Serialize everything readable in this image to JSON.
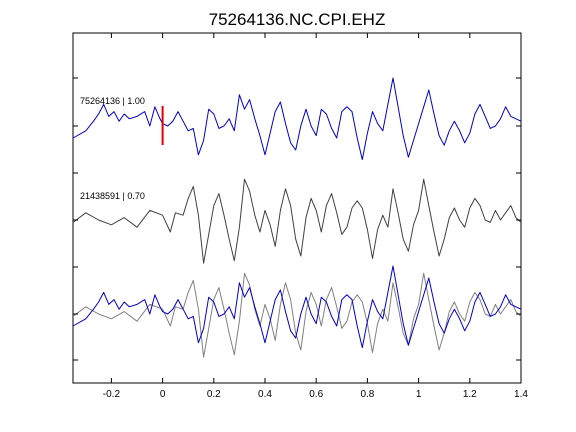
{
  "chart_data": {
    "type": "line",
    "title": "75264136.NC.CPI.EHZ",
    "xlabel": "",
    "ylabel": "",
    "xlim": [
      -0.35,
      1.4
    ],
    "xticks": [
      -0.2,
      0,
      0.2,
      0.4,
      0.6,
      0.8,
      1,
      1.2,
      1.4
    ],
    "xtick_labels": [
      "-0.2",
      "0",
      "0.2",
      "0.4",
      "0.6",
      "0.8",
      "1",
      "1.2",
      "1.4"
    ],
    "grid": false,
    "pick_marker": {
      "x": 0,
      "color": "#e00000"
    },
    "traces": [
      {
        "label": "75264136 | 1.00",
        "color": "#0000cc",
        "x": [
          -0.35,
          -0.3,
          -0.27,
          -0.25,
          -0.23,
          -0.21,
          -0.19,
          -0.17,
          -0.15,
          -0.13,
          -0.1,
          -0.07,
          -0.05,
          -0.03,
          -0.01,
          0.0,
          0.02,
          0.04,
          0.06,
          0.08,
          0.1,
          0.12,
          0.14,
          0.16,
          0.18,
          0.2,
          0.22,
          0.24,
          0.26,
          0.28,
          0.3,
          0.32,
          0.34,
          0.36,
          0.38,
          0.4,
          0.42,
          0.44,
          0.46,
          0.48,
          0.5,
          0.52,
          0.54,
          0.56,
          0.58,
          0.6,
          0.62,
          0.64,
          0.66,
          0.68,
          0.7,
          0.72,
          0.74,
          0.76,
          0.78,
          0.8,
          0.82,
          0.84,
          0.86,
          0.88,
          0.9,
          0.92,
          0.94,
          0.96,
          0.98,
          1.0,
          1.02,
          1.04,
          1.06,
          1.08,
          1.1,
          1.12,
          1.14,
          1.16,
          1.18,
          1.2,
          1.22,
          1.24,
          1.26,
          1.28,
          1.3,
          1.32,
          1.34,
          1.36,
          1.38,
          1.4
        ],
        "y": [
          -0.5,
          -0.2,
          0.2,
          0.5,
          0.9,
          0.4,
          0.6,
          0.2,
          0.5,
          0.3,
          0.4,
          0.6,
          0.0,
          0.8,
          0.3,
          0.1,
          0.0,
          0.2,
          0.6,
          0.2,
          -0.2,
          -0.1,
          -1.2,
          -0.6,
          0.7,
          0.5,
          -0.1,
          0.0,
          0.3,
          -0.2,
          1.3,
          0.7,
          1.1,
          0.3,
          -0.4,
          -1.2,
          -0.3,
          0.6,
          1.0,
          0.1,
          -0.7,
          -1.0,
          0.0,
          0.7,
          0.0,
          -0.4,
          0.7,
          0.5,
          -0.1,
          -0.5,
          0.6,
          0.8,
          0.6,
          -0.5,
          -1.4,
          -0.3,
          0.6,
          0.1,
          -0.2,
          0.9,
          2.0,
          0.8,
          -0.4,
          -1.3,
          -0.6,
          0.1,
          0.8,
          1.5,
          0.5,
          -0.4,
          -0.8,
          -0.2,
          0.2,
          -0.2,
          -0.7,
          -0.3,
          0.5,
          0.9,
          0.4,
          -0.1,
          0.0,
          0.3,
          0.8,
          0.4,
          0.3,
          0.2
        ]
      },
      {
        "label": "21438591 | 0.70",
        "color": "#404040",
        "x": [
          -0.35,
          -0.3,
          -0.25,
          -0.2,
          -0.15,
          -0.1,
          -0.05,
          0.0,
          0.03,
          0.05,
          0.08,
          0.1,
          0.12,
          0.14,
          0.16,
          0.18,
          0.2,
          0.22,
          0.24,
          0.26,
          0.28,
          0.3,
          0.32,
          0.34,
          0.36,
          0.38,
          0.4,
          0.42,
          0.44,
          0.46,
          0.48,
          0.5,
          0.52,
          0.54,
          0.56,
          0.58,
          0.6,
          0.62,
          0.64,
          0.66,
          0.68,
          0.7,
          0.72,
          0.74,
          0.76,
          0.78,
          0.8,
          0.82,
          0.84,
          0.86,
          0.88,
          0.9,
          0.92,
          0.94,
          0.96,
          0.98,
          1.0,
          1.02,
          1.04,
          1.06,
          1.08,
          1.1,
          1.12,
          1.14,
          1.16,
          1.18,
          1.2,
          1.22,
          1.24,
          1.26,
          1.28,
          1.3,
          1.32,
          1.34,
          1.36,
          1.38,
          1.4
        ],
        "y": [
          -0.1,
          0.3,
          0.0,
          -0.2,
          0.1,
          -0.3,
          0.4,
          0.2,
          -0.5,
          0.3,
          0.2,
          0.9,
          1.4,
          0.2,
          -1.8,
          -0.6,
          0.6,
          1.1,
          0.2,
          -0.8,
          -1.7,
          -0.3,
          1.7,
          1.2,
          0.2,
          -0.5,
          0.4,
          -0.2,
          -1.1,
          0.4,
          1.3,
          0.6,
          -0.8,
          -1.5,
          0.1,
          0.9,
          0.4,
          -0.5,
          0.6,
          1.1,
          0.3,
          -0.6,
          -0.3,
          0.5,
          0.8,
          0.5,
          -0.4,
          -1.6,
          -0.4,
          0.2,
          -0.3,
          1.3,
          0.3,
          -0.8,
          -1.3,
          -0.2,
          0.4,
          1.7,
          0.6,
          -0.5,
          -1.5,
          -0.8,
          0.1,
          0.5,
          0.0,
          -0.3,
          0.5,
          0.9,
          0.6,
          0.0,
          -0.1,
          0.4,
          0.0,
          0.3,
          0.6,
          0.1,
          -0.1
        ]
      },
      {
        "label": "",
        "color": "#0000cc",
        "x": [
          -0.35,
          -0.3,
          -0.27,
          -0.25,
          -0.23,
          -0.21,
          -0.19,
          -0.17,
          -0.15,
          -0.13,
          -0.1,
          -0.07,
          -0.05,
          -0.03,
          -0.01,
          0.0,
          0.02,
          0.04,
          0.06,
          0.08,
          0.1,
          0.12,
          0.14,
          0.16,
          0.18,
          0.2,
          0.22,
          0.24,
          0.26,
          0.28,
          0.3,
          0.32,
          0.34,
          0.36,
          0.38,
          0.4,
          0.42,
          0.44,
          0.46,
          0.48,
          0.5,
          0.52,
          0.54,
          0.56,
          0.58,
          0.6,
          0.62,
          0.64,
          0.66,
          0.68,
          0.7,
          0.72,
          0.74,
          0.76,
          0.78,
          0.8,
          0.82,
          0.84,
          0.86,
          0.88,
          0.9,
          0.92,
          0.94,
          0.96,
          0.98,
          1.0,
          1.02,
          1.04,
          1.06,
          1.08,
          1.1,
          1.12,
          1.14,
          1.16,
          1.18,
          1.2,
          1.22,
          1.24,
          1.26,
          1.28,
          1.3,
          1.32,
          1.34,
          1.36,
          1.38,
          1.4
        ],
        "y": [
          -0.5,
          -0.2,
          0.2,
          0.5,
          0.9,
          0.4,
          0.6,
          0.2,
          0.5,
          0.3,
          0.4,
          0.6,
          0.0,
          0.8,
          0.3,
          0.1,
          0.0,
          0.2,
          0.6,
          0.2,
          -0.2,
          -0.1,
          -1.2,
          -0.6,
          0.7,
          0.5,
          -0.1,
          0.0,
          0.3,
          -0.2,
          1.3,
          0.7,
          1.1,
          0.3,
          -0.4,
          -1.2,
          -0.3,
          0.6,
          1.0,
          0.1,
          -0.7,
          -1.0,
          0.0,
          0.7,
          0.0,
          -0.4,
          0.7,
          0.5,
          -0.1,
          -0.5,
          0.6,
          0.8,
          0.6,
          -0.5,
          -1.4,
          -0.3,
          0.6,
          0.1,
          -0.2,
          0.9,
          2.0,
          0.8,
          -0.4,
          -1.3,
          -0.6,
          0.1,
          0.8,
          1.5,
          0.5,
          -0.4,
          -0.8,
          -0.2,
          0.2,
          -0.2,
          -0.7,
          -0.3,
          0.5,
          0.9,
          0.4,
          -0.1,
          0.0,
          0.3,
          0.8,
          0.4,
          0.3,
          0.2
        ]
      },
      {
        "label": "",
        "color": "#808080",
        "x": [
          -0.35,
          -0.3,
          -0.25,
          -0.2,
          -0.15,
          -0.1,
          -0.05,
          0.0,
          0.03,
          0.05,
          0.08,
          0.1,
          0.12,
          0.14,
          0.16,
          0.18,
          0.2,
          0.22,
          0.24,
          0.26,
          0.28,
          0.3,
          0.32,
          0.34,
          0.36,
          0.38,
          0.4,
          0.42,
          0.44,
          0.46,
          0.48,
          0.5,
          0.52,
          0.54,
          0.56,
          0.58,
          0.6,
          0.62,
          0.64,
          0.66,
          0.68,
          0.7,
          0.72,
          0.74,
          0.76,
          0.78,
          0.8,
          0.82,
          0.84,
          0.86,
          0.88,
          0.9,
          0.92,
          0.94,
          0.96,
          0.98,
          1.0,
          1.02,
          1.04,
          1.06,
          1.08,
          1.1,
          1.12,
          1.14,
          1.16,
          1.18,
          1.2,
          1.22,
          1.24,
          1.26,
          1.28,
          1.3,
          1.32,
          1.34,
          1.36,
          1.38,
          1.4
        ],
        "y": [
          -0.1,
          0.3,
          0.0,
          -0.2,
          0.1,
          -0.3,
          0.4,
          0.2,
          -0.5,
          0.3,
          0.2,
          0.9,
          1.4,
          0.2,
          -1.8,
          -0.6,
          0.6,
          1.1,
          0.2,
          -0.8,
          -1.7,
          -0.3,
          1.7,
          1.2,
          0.2,
          -0.5,
          0.4,
          -0.2,
          -1.1,
          0.4,
          1.3,
          0.6,
          -0.8,
          -1.5,
          0.1,
          0.9,
          0.4,
          -0.5,
          0.6,
          1.1,
          0.3,
          -0.6,
          -0.3,
          0.5,
          0.8,
          0.5,
          -0.4,
          -1.6,
          -0.4,
          0.2,
          -0.3,
          1.3,
          0.3,
          -0.8,
          -1.3,
          -0.2,
          0.4,
          1.7,
          0.6,
          -0.5,
          -1.5,
          -0.8,
          0.1,
          0.5,
          0.0,
          -0.3,
          0.5,
          0.9,
          0.6,
          0.0,
          -0.1,
          0.4,
          0.0,
          0.3,
          0.6,
          0.1,
          -0.1
        ]
      }
    ]
  }
}
